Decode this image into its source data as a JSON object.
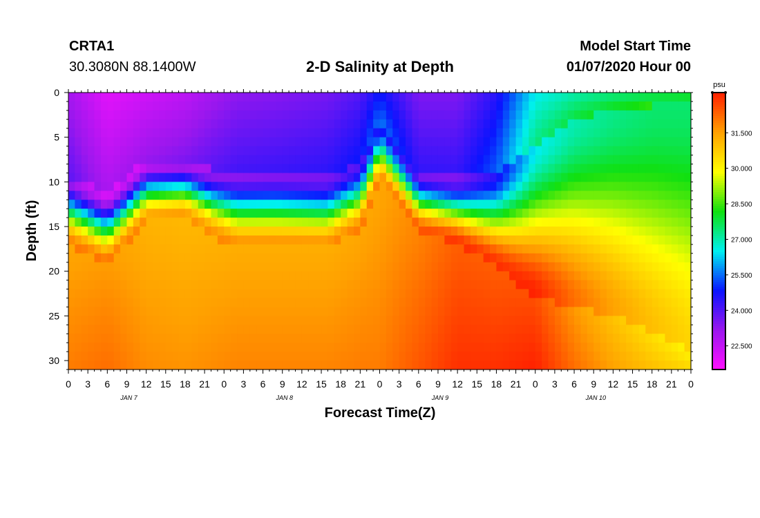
{
  "header": {
    "station": "CRTA1",
    "coordinates": "30.3080N 88.1400W",
    "title": "2-D Salinity at Depth",
    "start_label": "Model Start Time",
    "start_value": "01/07/2020 Hour 00"
  },
  "chart_data": {
    "type": "heatmap",
    "title": "2-D Salinity at Depth",
    "xlabel": "Forecast Time(Z)",
    "ylabel": "Depth (ft)",
    "x_tick_labels": [
      "0",
      "3",
      "6",
      "9",
      "12",
      "15",
      "18",
      "21",
      "0",
      "3",
      "6",
      "9",
      "12",
      "15",
      "18",
      "21",
      "0",
      "3",
      "6",
      "9",
      "12",
      "15",
      "18",
      "21",
      "0",
      "3",
      "6",
      "9",
      "12",
      "15",
      "18",
      "21",
      "0"
    ],
    "x_day_labels": [
      {
        "label": "JAN 7",
        "hour": 9
      },
      {
        "label": "JAN 8",
        "hour": 33
      },
      {
        "label": "JAN 9",
        "hour": 57
      },
      {
        "label": "JAN 10",
        "hour": 81
      }
    ],
    "x_range_hours": [
      0,
      96
    ],
    "y_range_ft": [
      0,
      31
    ],
    "y_ticks": [
      0,
      5,
      10,
      15,
      20,
      25,
      30
    ],
    "y_inverted": true,
    "colorbar": {
      "unit": "psu",
      "range": [
        21.5,
        33.2
      ],
      "ticks": [
        22.5,
        24.0,
        25.5,
        27.0,
        28.5,
        30.0,
        31.5
      ],
      "tick_labels": [
        "22.500",
        "24.000",
        "25.500",
        "27.000",
        "28.500",
        "30.000",
        "31.500"
      ],
      "colors": [
        "#ff10ff",
        "#9b17ee",
        "#0a14ff",
        "#00f0f0",
        "#10e010",
        "#ffff00",
        "#ffa000",
        "#ff2000"
      ]
    },
    "profile_hours": [
      0,
      6,
      12,
      18,
      22,
      26,
      32,
      40,
      45,
      48,
      54,
      60,
      66,
      72,
      78,
      84,
      90,
      96
    ],
    "halocline_top_ft": [
      9.5,
      11.0,
      7.5,
      7.5,
      8.5,
      9.0,
      9.0,
      9.5,
      8.0,
      3.5,
      9.0,
      9.5,
      9.0,
      6.0,
      3.0,
      2.0,
      1.5,
      1.0
    ],
    "halocline_bottom_ft": [
      17.0,
      19.5,
      14.5,
      14.0,
      16.0,
      17.5,
      17.5,
      17.5,
      15.5,
      10.0,
      15.5,
      17.0,
      19.5,
      23.0,
      24.0,
      25.0,
      27.0,
      29.0
    ],
    "surface_salinity_psu": [
      23.0,
      22.0,
      22.3,
      22.6,
      23.0,
      23.3,
      23.4,
      23.6,
      24.0,
      24.8,
      23.5,
      23.5,
      24.5,
      26.5,
      27.0,
      27.3,
      27.5,
      27.5
    ],
    "bottom_salinity_psu": [
      32.0,
      32.2,
      31.8,
      31.7,
      31.8,
      31.9,
      31.9,
      31.9,
      32.0,
      32.0,
      32.5,
      33.0,
      33.0,
      33.2,
      32.2,
      31.5,
      31.0,
      30.6
    ]
  }
}
